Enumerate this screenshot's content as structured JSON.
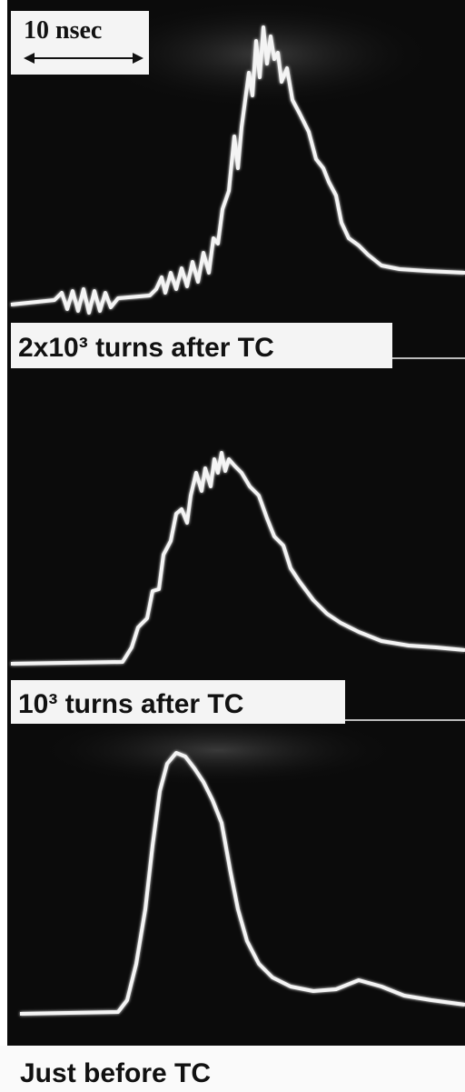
{
  "scale_label": "10 nsec",
  "panels": [
    {
      "label": "2x10³ turns after TC"
    },
    {
      "label": "10³ turns after TC"
    },
    {
      "label": "Just before TC"
    }
  ]
}
